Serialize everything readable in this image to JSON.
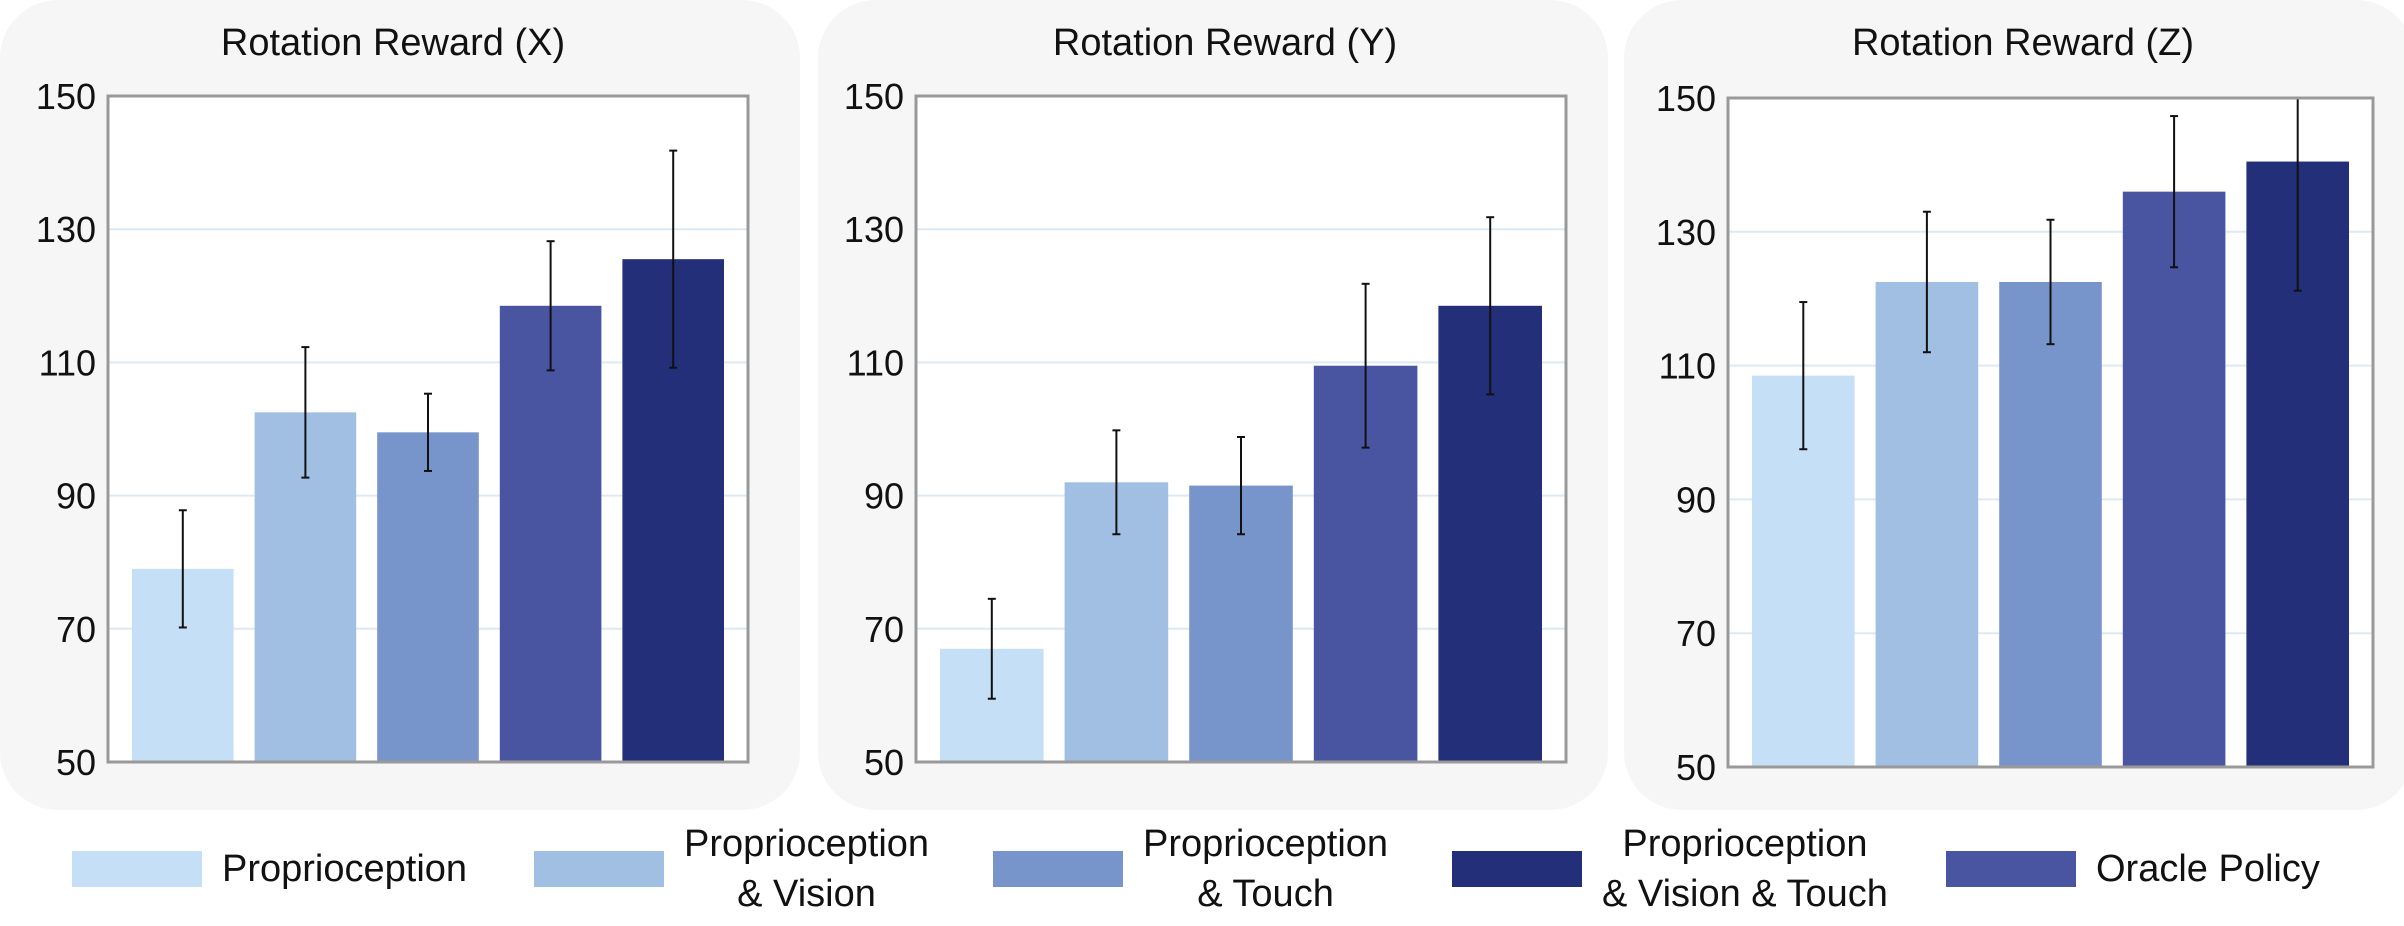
{
  "chart_data": [
    {
      "type": "bar",
      "title": "Rotation Reward (X)",
      "categories": [
        "Proprioception",
        "Proprioception & Vision",
        "Proprioception & Touch",
        "Oracle Policy",
        "Proprioception & Vision & Touch"
      ],
      "values": [
        79,
        102.5,
        99.5,
        118.5,
        125.5
      ],
      "errors": [
        8.8,
        9.8,
        5.8,
        9.7,
        16.3
      ],
      "ylim": [
        50,
        150
      ],
      "yticks": [
        50,
        70,
        90,
        110,
        130,
        150
      ],
      "xlabel": "",
      "ylabel": ""
    },
    {
      "type": "bar",
      "title": "Rotation Reward (Y)",
      "categories": [
        "Proprioception",
        "Proprioception & Vision",
        "Proprioception & Touch",
        "Oracle Policy",
        "Proprioception & Vision & Touch"
      ],
      "values": [
        67,
        92,
        91.5,
        109.5,
        118.5
      ],
      "errors": [
        7.5,
        7.8,
        7.3,
        12.3,
        13.3
      ],
      "ylim": [
        50,
        150
      ],
      "yticks": [
        50,
        70,
        90,
        110,
        130,
        150
      ],
      "xlabel": "",
      "ylabel": ""
    },
    {
      "type": "bar",
      "title": "Rotation Reward (Z)",
      "categories": [
        "Proprioception",
        "Proprioception & Vision",
        "Proprioception & Touch",
        "Oracle Policy",
        "Proprioception & Vision & Touch"
      ],
      "values": [
        108.5,
        122.5,
        122.5,
        136,
        140.5
      ],
      "errors": [
        11,
        10.5,
        9.3,
        11.3,
        19.3
      ],
      "ylim": [
        50,
        150
      ],
      "yticks": [
        50,
        70,
        90,
        110,
        130,
        150
      ],
      "xlabel": "",
      "ylabel": ""
    }
  ],
  "colors": {
    "proprioception": "#c5dff6",
    "proprioception_vision": "#a0bfe3",
    "proprioception_touch": "#7895cb",
    "oracle_policy": "#4a55a2",
    "proprioception_vision_touch": "#232f78",
    "panel_background": "#f6f6f6",
    "gridline": "#ddeaf3",
    "axis": "#999999"
  },
  "legend": [
    {
      "label": "Proprioception",
      "color": "#c5dff6"
    },
    {
      "label": "Proprioception\n& Vision",
      "color": "#a0bfe3"
    },
    {
      "label": "Proprioception\n& Touch",
      "color": "#7895cb"
    },
    {
      "label": "Proprioception\n& Vision & Touch",
      "color": "#232f78"
    },
    {
      "label": "Oracle Policy",
      "color": "#4a55a2"
    }
  ]
}
